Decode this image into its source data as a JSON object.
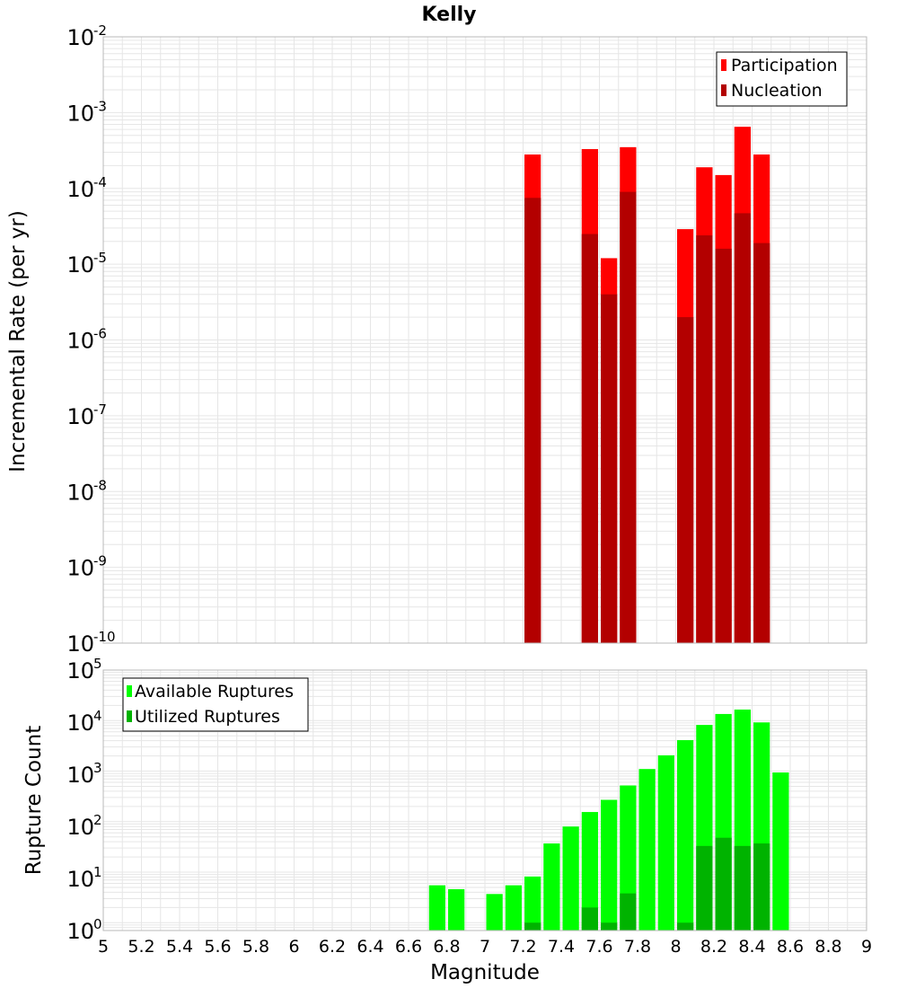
{
  "chart_data": [
    {
      "type": "bar",
      "title": "Kelly",
      "xlabel": "Magnitude",
      "ylabel": "Incremental Rate (per yr)",
      "yscale": "log",
      "ylim": [
        1e-10,
        0.01
      ],
      "xlim": [
        5,
        9
      ],
      "legend": "top-right",
      "grid": true,
      "bin_width": 0.1,
      "series": [
        {
          "name": "Participation",
          "color": "#ff0000",
          "x": [
            7.25,
            7.55,
            7.65,
            7.75,
            8.05,
            8.15,
            8.25,
            8.35,
            8.45
          ],
          "values": [
            0.00028,
            0.00033,
            1.2e-05,
            0.00035,
            2.9e-05,
            0.00019,
            0.00015,
            0.00065,
            0.00028
          ]
        },
        {
          "name": "Nucleation",
          "color": "#b30000",
          "x": [
            7.25,
            7.55,
            7.65,
            7.75,
            8.05,
            8.15,
            8.25,
            8.35,
            8.45
          ],
          "values": [
            7.5e-05,
            2.5e-05,
            4e-06,
            9e-05,
            2e-06,
            2.4e-05,
            1.6e-05,
            4.7e-05,
            1.9e-05
          ]
        }
      ]
    },
    {
      "type": "bar",
      "xlabel": "Magnitude",
      "ylabel": "Rupture Count",
      "yscale": "log",
      "ylim": [
        0.7,
        100000
      ],
      "xlim": [
        5,
        9
      ],
      "legend": "top-left",
      "grid": true,
      "bin_width": 0.1,
      "series": [
        {
          "name": "Available Ruptures",
          "color": "#00ff00",
          "x": [
            6.75,
            6.85,
            7.05,
            7.15,
            7.25,
            7.35,
            7.45,
            7.55,
            7.65,
            7.75,
            7.85,
            7.95,
            8.05,
            8.15,
            8.25,
            8.35,
            8.45,
            8.55
          ],
          "values": [
            5.5,
            4.6,
            3.7,
            5.5,
            8.2,
            37,
            80,
            155,
            270,
            520,
            1100,
            2050,
            4100,
            8200,
            13500,
            16500,
            9200,
            940
          ]
        },
        {
          "name": "Utilized Ruptures",
          "color": "#00b300",
          "x": [
            7.25,
            7.55,
            7.65,
            7.75,
            8.05,
            8.15,
            8.25,
            8.35,
            8.45
          ],
          "values": [
            1,
            2,
            1,
            3.8,
            1,
            33,
            48,
            33,
            37
          ]
        }
      ]
    }
  ],
  "x_ticks": [
    "5",
    "5.2",
    "5.4",
    "5.6",
    "5.8",
    "6",
    "6.2",
    "6.4",
    "6.6",
    "6.8",
    "7",
    "7.2",
    "7.4",
    "7.6",
    "7.8",
    "8",
    "8.2",
    "8.4",
    "8.6",
    "8.8",
    "9"
  ],
  "top_y_ticks": [
    {
      "base": "10",
      "exp": "-2"
    },
    {
      "base": "10",
      "exp": "-3"
    },
    {
      "base": "10",
      "exp": "-4"
    },
    {
      "base": "10",
      "exp": "-5"
    },
    {
      "base": "10",
      "exp": "-6"
    },
    {
      "base": "10",
      "exp": "-7"
    },
    {
      "base": "10",
      "exp": "-8"
    },
    {
      "base": "10",
      "exp": "-9"
    },
    {
      "base": "10",
      "exp": "-10"
    }
  ],
  "bottom_y_ticks": [
    {
      "base": "10",
      "exp": "5"
    },
    {
      "base": "10",
      "exp": "4"
    },
    {
      "base": "10",
      "exp": "3"
    },
    {
      "base": "10",
      "exp": "2"
    },
    {
      "base": "10",
      "exp": "1"
    },
    {
      "base": "10",
      "exp": "0"
    }
  ]
}
